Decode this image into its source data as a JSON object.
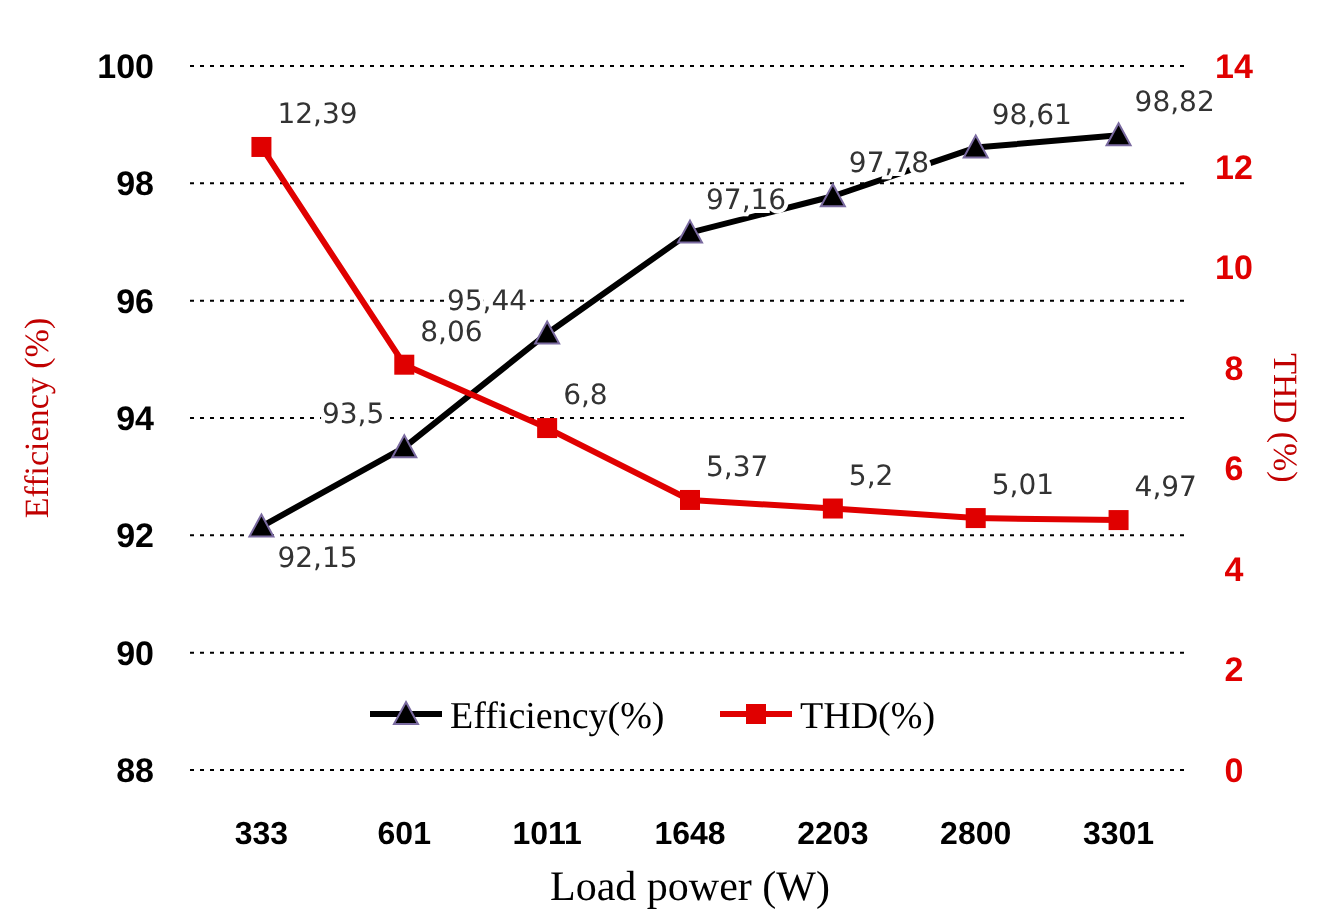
{
  "chart_data": {
    "type": "line",
    "xlabel": "Load power (W)",
    "ylabel": "Efficiency (%)",
    "y2label": "THD (%)",
    "categories": [
      "333",
      "601",
      "1011",
      "1648",
      "2203",
      "2800",
      "3301"
    ],
    "series": [
      {
        "name": "Efficiency(%)",
        "color": "#000000",
        "marker": "triangle",
        "values": [
          92.15,
          93.5,
          95.44,
          97.16,
          97.78,
          98.61,
          98.82
        ],
        "value_labels": [
          "92,15",
          "93,5",
          "95,44",
          "97,16",
          "97,78",
          "98,61",
          "98,82"
        ]
      },
      {
        "name": "THD(%)",
        "color": "#e00000",
        "marker": "square",
        "axis": "y2",
        "values": [
          12.39,
          8.06,
          6.8,
          5.37,
          5.2,
          5.01,
          4.97
        ],
        "value_labels": [
          "12,39",
          "8,06",
          "6,8",
          "5,37",
          "5,2",
          "5,01",
          "4,97"
        ]
      }
    ],
    "ylim": [
      88,
      100
    ],
    "yticks": [
      88,
      90,
      92,
      94,
      96,
      98,
      100
    ],
    "y2lim": [
      0,
      14
    ],
    "y2ticks": [
      0,
      2,
      4,
      6,
      8,
      10,
      12,
      14
    ],
    "grid": "y",
    "legend": "bottom"
  }
}
